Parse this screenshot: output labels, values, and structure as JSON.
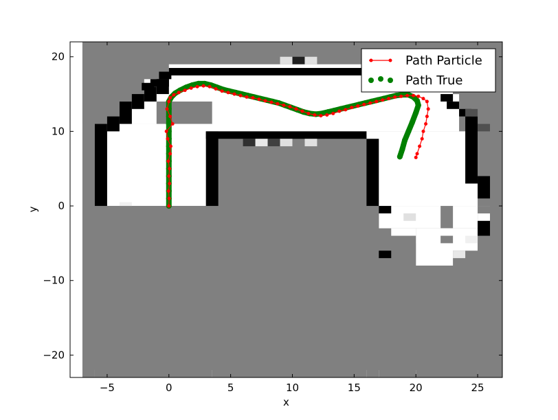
{
  "chart_data": {
    "type": "scatter",
    "title": "",
    "xlabel": "x",
    "ylabel": "y",
    "xlim": [
      -8,
      27
    ],
    "ylim": [
      -23,
      22
    ],
    "xticks": [
      -5,
      0,
      5,
      10,
      15,
      20,
      25
    ],
    "yticks": [
      -20,
      -10,
      0,
      10,
      20
    ],
    "xtick_labels": [
      "−5",
      "0",
      "5",
      "10",
      "15",
      "20",
      "25"
    ],
    "ytick_labels": [
      "−20",
      "−10",
      "0",
      "10",
      "20"
    ],
    "grid": false,
    "legend_position": "top-right",
    "occupancy_map": {
      "description_units": "cells of 1 x 1 data units, value = darkness shade",
      "extent": {
        "x": [
          -7,
          27
        ],
        "y": [
          -22,
          22
        ]
      },
      "default_color": "#808080",
      "free_color": "#ffffff",
      "wall_color": "#000000"
    },
    "series": [
      {
        "name": "Path Particle",
        "style": "line-with-dots",
        "color": "#ff0000",
        "x": [
          0.0,
          0.02,
          -0.03,
          0.05,
          0.0,
          0.05,
          -0.05,
          0.1,
          0.15,
          -0.1,
          -0.2,
          0.3,
          0.1,
          -0.15,
          0.0,
          0.1,
          0.4,
          0.8,
          1.3,
          1.8,
          2.3,
          2.8,
          3.3,
          3.8,
          4.3,
          4.8,
          5.3,
          5.8,
          6.3,
          6.8,
          7.3,
          7.8,
          8.3,
          8.8,
          9.3,
          9.8,
          10.3,
          10.8,
          11.3,
          11.8,
          12.3,
          12.8,
          13.3,
          13.8,
          14.3,
          14.8,
          15.3,
          15.8,
          16.3,
          16.8,
          17.3,
          17.8,
          18.3,
          18.8,
          19.3,
          19.8,
          20.2,
          20.6,
          20.9,
          21.0,
          20.9,
          20.8,
          20.6,
          20.5,
          20.3,
          20.1,
          20.0
        ],
        "y": [
          0.0,
          1.0,
          2.0,
          3.0,
          4.0,
          5.0,
          6.0,
          7.0,
          8.0,
          9.0,
          10.0,
          11.0,
          12.0,
          13.0,
          14.0,
          14.5,
          14.9,
          15.2,
          15.5,
          15.8,
          16.0,
          16.1,
          16.0,
          15.7,
          15.4,
          15.2,
          15.0,
          14.8,
          14.6,
          14.5,
          14.3,
          14.1,
          13.9,
          13.7,
          13.5,
          13.3,
          13.0,
          12.7,
          12.4,
          12.2,
          12.1,
          12.2,
          12.4,
          12.7,
          12.9,
          13.2,
          13.4,
          13.6,
          13.8,
          14.0,
          14.2,
          14.4,
          14.6,
          14.7,
          14.8,
          14.8,
          14.7,
          14.4,
          14.0,
          13.0,
          12.0,
          11.0,
          10.0,
          9.0,
          8.0,
          7.0,
          6.5
        ]
      },
      {
        "name": "Path True",
        "style": "thick-dotted",
        "color": "#008000",
        "x": [
          0.0,
          0.0,
          0.0,
          0.0,
          0.0,
          0.0,
          0.0,
          0.0,
          0.0,
          0.0,
          0.0,
          0.0,
          0.0,
          0.0,
          0.0,
          0.2,
          0.5,
          0.9,
          1.4,
          1.9,
          2.4,
          2.9,
          3.4,
          3.9,
          4.4,
          4.9,
          5.4,
          5.9,
          6.4,
          6.9,
          7.4,
          7.9,
          8.4,
          8.9,
          9.4,
          9.9,
          10.4,
          10.9,
          11.4,
          11.9,
          12.4,
          12.9,
          13.4,
          13.9,
          14.4,
          14.9,
          15.4,
          15.9,
          16.4,
          16.9,
          17.4,
          17.9,
          18.4,
          18.9,
          19.4,
          19.8,
          20.1,
          20.2,
          20.0,
          19.7,
          19.4,
          19.1,
          18.9,
          18.7
        ],
        "y": [
          0.0,
          1.0,
          2.0,
          3.0,
          4.0,
          5.0,
          6.0,
          7.0,
          8.0,
          9.0,
          10.0,
          11.0,
          12.0,
          13.0,
          14.0,
          14.6,
          15.1,
          15.5,
          15.9,
          16.2,
          16.4,
          16.4,
          16.2,
          15.9,
          15.6,
          15.4,
          15.2,
          15.0,
          14.8,
          14.6,
          14.4,
          14.2,
          14.0,
          13.8,
          13.5,
          13.2,
          12.9,
          12.6,
          12.4,
          12.3,
          12.4,
          12.6,
          12.8,
          13.0,
          13.2,
          13.4,
          13.6,
          13.8,
          14.0,
          14.2,
          14.4,
          14.6,
          14.8,
          14.9,
          14.9,
          14.6,
          14.1,
          13.5,
          12.5,
          11.2,
          10.0,
          8.8,
          7.6,
          6.6
        ]
      }
    ]
  }
}
